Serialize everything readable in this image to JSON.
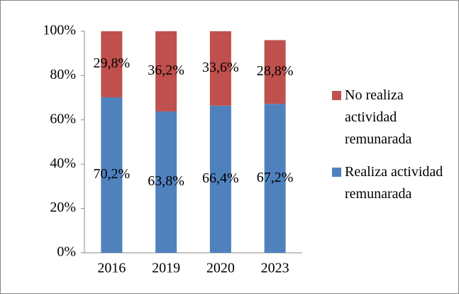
{
  "chart_data": {
    "type": "stacked_bar",
    "categories": [
      "2016",
      "2019",
      "2020",
      "2023"
    ],
    "series": [
      {
        "name": "Realiza actividad remunarada",
        "color": "#4f81bd",
        "values": [
          70.2,
          63.8,
          66.4,
          67.2
        ],
        "value_labels": [
          "70,2%",
          "63,8%",
          "66,4%",
          "67,2%"
        ]
      },
      {
        "name": "No realiza actividad remunarada",
        "color": "#c0504d",
        "values": [
          29.8,
          36.2,
          33.6,
          28.8
        ],
        "value_labels": [
          "29,8%",
          "36,2%",
          "33,6%",
          "28,8%"
        ]
      }
    ],
    "ylim": [
      0,
      100
    ],
    "yticks": [
      {
        "value": 0,
        "label": "0%"
      },
      {
        "value": 20,
        "label": "20%"
      },
      {
        "value": 40,
        "label": "40%"
      },
      {
        "value": 60,
        "label": "60%"
      },
      {
        "value": 80,
        "label": "80%"
      },
      {
        "value": 100,
        "label": "100%"
      }
    ],
    "legend": "right"
  }
}
